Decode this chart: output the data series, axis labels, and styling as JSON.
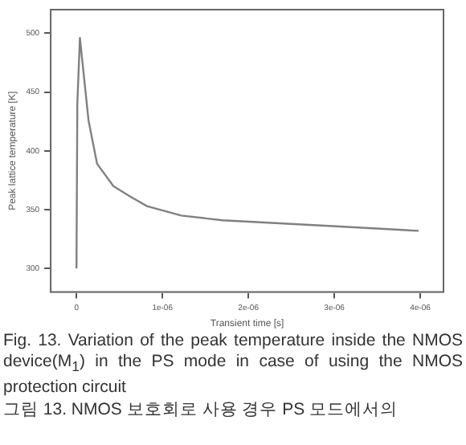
{
  "chart_data": {
    "type": "line",
    "xlabel": "Transient time [s]",
    "ylabel": "Peak lattice temperature [K]",
    "x": [
      0,
      1e-08,
      4e-08,
      1.4e-07,
      2.4e-07,
      4.3e-07,
      6.3e-07,
      8.2e-07,
      1.22e-06,
      1.7e-06,
      2.98e-06,
      3.98e-06
    ],
    "series": [
      {
        "color": "#808080",
        "values": [
          300,
          440,
          496,
          426,
          389,
          370,
          361,
          353,
          345,
          341,
          336,
          332
        ]
      }
    ],
    "xlim": [
      -3e-07,
      4.27e-06
    ],
    "xticks": [
      0,
      {
        "value": 1e-06,
        "label": "1e-06"
      },
      {
        "value": 2e-06,
        "label": "2e-06"
      },
      {
        "value": 3e-06,
        "label": "3e-06"
      },
      {
        "value": 4e-06,
        "label": "4e-06"
      }
    ],
    "ylim": [
      280,
      520
    ],
    "yticks": [
      300,
      350,
      400,
      450,
      500
    ],
    "grid": false,
    "legend": false,
    "marker": "none",
    "line_style": "solid",
    "annotations": [
      "Fig.  13. Variation of the peak temperature inside the NMOS device(M$_{1}$) in the PS mode in case of using the NMOS protection circuit",
      "그림  13. NMOS 보호회로 사용 경우 PS 모드에서의"
    ]
  }
}
